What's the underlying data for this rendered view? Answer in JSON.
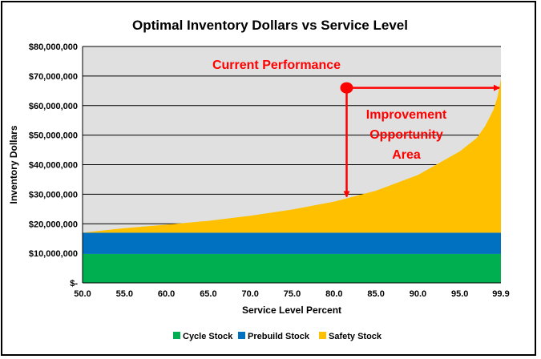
{
  "chart_data": {
    "type": "area",
    "title": "Optimal Inventory Dollars vs Service Level",
    "xlabel": "Service Level Percent",
    "ylabel": "Inventory Dollars",
    "xlim": [
      50.0,
      99.9
    ],
    "ylim": [
      0,
      80000000
    ],
    "x_ticks": [
      "50.0",
      "55.0",
      "60.0",
      "65.0",
      "70.0",
      "75.0",
      "80.0",
      "85.0",
      "90.0",
      "95.0",
      "99.9"
    ],
    "y_ticks": [
      {
        "value": 0,
        "label": "$-"
      },
      {
        "value": 10000000,
        "label": "$10,000,000"
      },
      {
        "value": 20000000,
        "label": "$20,000,000"
      },
      {
        "value": 30000000,
        "label": "$30,000,000"
      },
      {
        "value": 40000000,
        "label": "$40,000,000"
      },
      {
        "value": 50000000,
        "label": "$50,000,000"
      },
      {
        "value": 60000000,
        "label": "$60,000,000"
      },
      {
        "value": 70000000,
        "label": "$70,000,000"
      },
      {
        "value": 80000000,
        "label": "$80,000,000"
      }
    ],
    "x": [
      50.0,
      55.0,
      60.0,
      65.0,
      70.0,
      75.0,
      80.0,
      85.0,
      90.0,
      95.0,
      97.0,
      98.0,
      99.0,
      99.5,
      99.9
    ],
    "series": [
      {
        "name": "Cycle Stock",
        "color": "#00b050",
        "values": [
          9800000,
          9800000,
          9800000,
          9800000,
          9800000,
          9800000,
          9800000,
          9800000,
          9800000,
          9800000,
          9800000,
          9800000,
          9800000,
          9800000,
          9800000
        ]
      },
      {
        "name": "Prebuild Stock",
        "color": "#0070c0",
        "values": [
          7200000,
          7200000,
          7200000,
          7200000,
          7200000,
          7200000,
          7200000,
          7200000,
          7200000,
          7200000,
          7200000,
          7200000,
          7200000,
          7200000,
          7200000
        ]
      },
      {
        "name": "Safety Stock",
        "color": "#ffc000",
        "values": [
          0,
          1500000,
          2700000,
          4000000,
          5700000,
          7800000,
          10500000,
          14200000,
          19500000,
          27500000,
          32000000,
          36000000,
          41500000,
          46000000,
          52000000
        ]
      }
    ],
    "current_point": {
      "x": 81.5,
      "y": 66000000
    },
    "annotations": {
      "current": "Current Performance",
      "improvement": [
        "Improvement",
        "Opportunity",
        "Area"
      ]
    },
    "colors": {
      "plot_background": "#e0e0e0",
      "annotation": "#ff0000"
    },
    "grid": true,
    "legend_position": "bottom"
  }
}
